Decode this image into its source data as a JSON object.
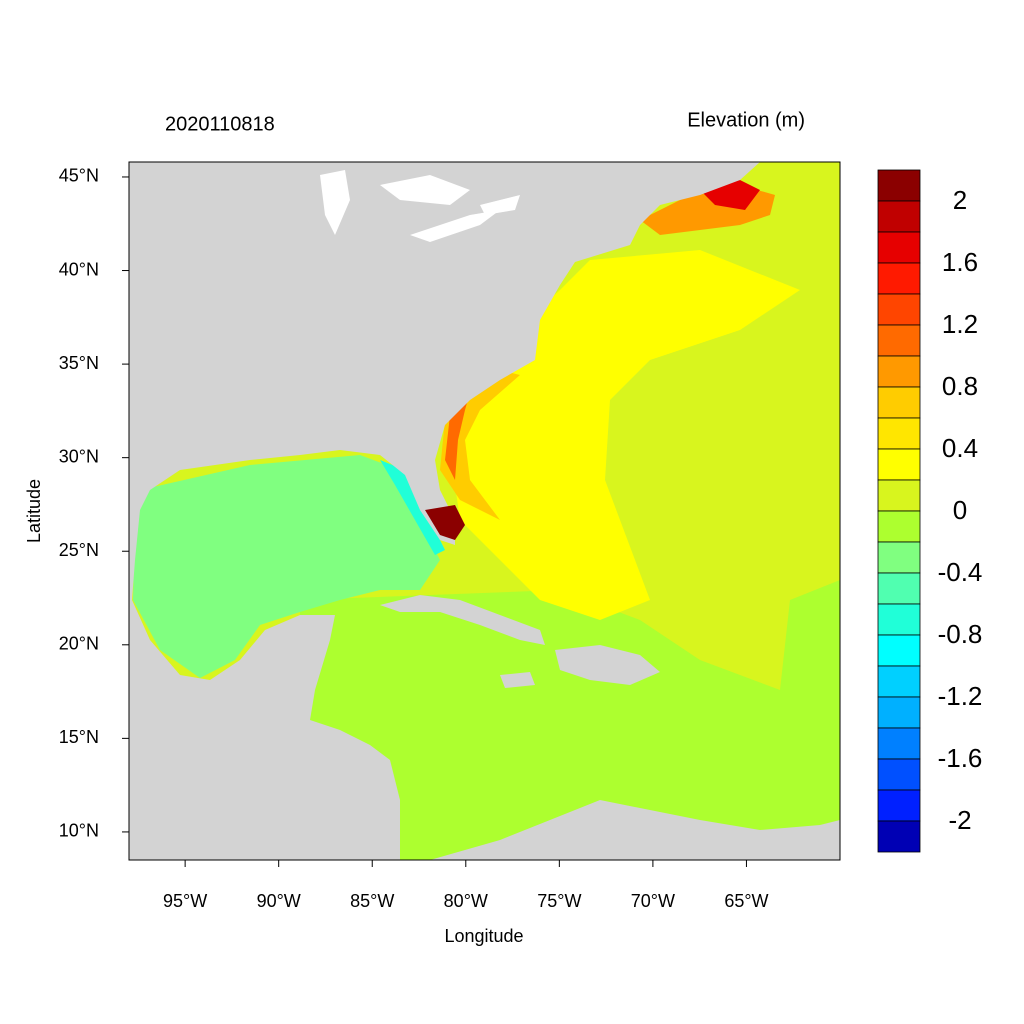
{
  "chart_data": {
    "type": "map",
    "title": "2020110818",
    "subtitle": "Elevation (m)",
    "x_label": "Longitude",
    "y_label": "Latitude",
    "xlim": [
      -98,
      -60
    ],
    "ylim": [
      8.5,
      45.8
    ],
    "xticks": [
      {
        "value": -95,
        "label": "95°W"
      },
      {
        "value": -90,
        "label": "90°W"
      },
      {
        "value": -85,
        "label": "85°W"
      },
      {
        "value": -80,
        "label": "80°W"
      },
      {
        "value": -75,
        "label": "75°W"
      },
      {
        "value": -70,
        "label": "70°W"
      },
      {
        "value": -65,
        "label": "65°W"
      }
    ],
    "yticks": [
      {
        "value": 10,
        "label": "10°N"
      },
      {
        "value": 15,
        "label": "15°N"
      },
      {
        "value": 20,
        "label": "20°N"
      },
      {
        "value": 25,
        "label": "25°N"
      },
      {
        "value": 30,
        "label": "30°N"
      },
      {
        "value": 35,
        "label": "35°N"
      },
      {
        "value": 40,
        "label": "40°N"
      },
      {
        "value": 45,
        "label": "45°N"
      }
    ],
    "colorbar": {
      "clim": [
        -2.2,
        2.2
      ],
      "ticks": [
        2,
        1.6,
        1.2,
        0.8,
        0.4,
        0,
        -0.4,
        -0.8,
        -1.2,
        -1.6,
        -2
      ],
      "colors": [
        "#8b0000",
        "#c00000",
        "#e60000",
        "#ff1a00",
        "#ff4500",
        "#ff6a00",
        "#ff9900",
        "#ffcc00",
        "#ffe600",
        "#ffff00",
        "#d8f51e",
        "#adff2f",
        "#80ff80",
        "#50ffb0",
        "#20ffd8",
        "#00ffff",
        "#00d0ff",
        "#00b0ff",
        "#0080ff",
        "#0050ff",
        "#0020ff",
        "#0000b4"
      ]
    }
  }
}
